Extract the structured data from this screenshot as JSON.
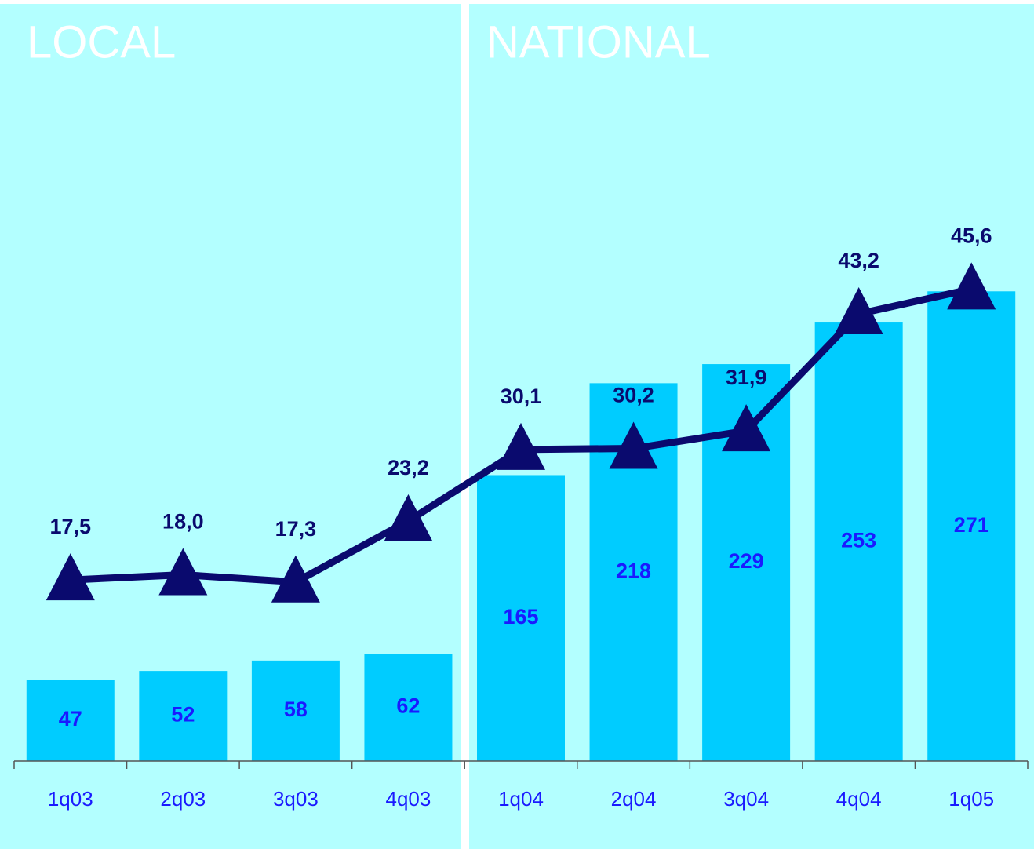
{
  "chart_data": {
    "type": "combo",
    "annotations": [
      "LOCAL",
      "NATIONAL"
    ],
    "categories": [
      "1q03",
      "2q03",
      "3q03",
      "4q03",
      "1q04",
      "2q04",
      "3q04",
      "4q04",
      "1q05"
    ],
    "series": [
      {
        "type": "bar",
        "color": "#00ccff",
        "label_color": "#1a1aff",
        "values": [
          47,
          52,
          58,
          62,
          165,
          218,
          229,
          253,
          271
        ]
      },
      {
        "type": "line",
        "axis": "y2",
        "color": "#0a0a6e",
        "label_color": "#0a0a6e",
        "values": [
          17.5,
          18.0,
          17.3,
          23.2,
          30.1,
          30.2,
          31.9,
          43.2,
          45.6
        ],
        "value_labels": [
          "17,5",
          "18,0",
          "17,3",
          "23,2",
          "30,1",
          "30,2",
          "31,9",
          "43,2",
          "45,6"
        ]
      }
    ],
    "ylim": [
      0,
      430
    ],
    "y2lim": [
      0,
      72
    ]
  }
}
